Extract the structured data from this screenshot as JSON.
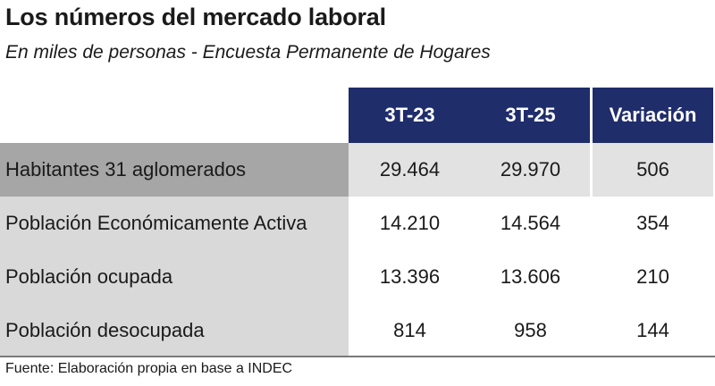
{
  "title": "Los números del mercado laboral",
  "subtitle": "En miles de personas - Encuesta Permanente de Hogares",
  "table": {
    "headers": [
      "3T-23",
      "3T-25",
      "Variación"
    ],
    "rows": [
      {
        "label": "Habitantes 31 aglomerados",
        "values": [
          "29.464",
          "29.970",
          "506"
        ]
      },
      {
        "label": "Población Económicamente Activa",
        "values": [
          "14.210",
          "14.564",
          "354"
        ]
      },
      {
        "label": "Población ocupada",
        "values": [
          "13.396",
          "13.606",
          "210"
        ]
      },
      {
        "label": "Población desocupada",
        "values": [
          "814",
          "958",
          "144"
        ]
      }
    ]
  },
  "source": "Fuente: Elaboración propia en base a INDEC",
  "colors": {
    "header_bg": "#1f2d6b",
    "first_row_label_bg": "#a6a6a6",
    "label_bg": "#d9d9d9"
  }
}
